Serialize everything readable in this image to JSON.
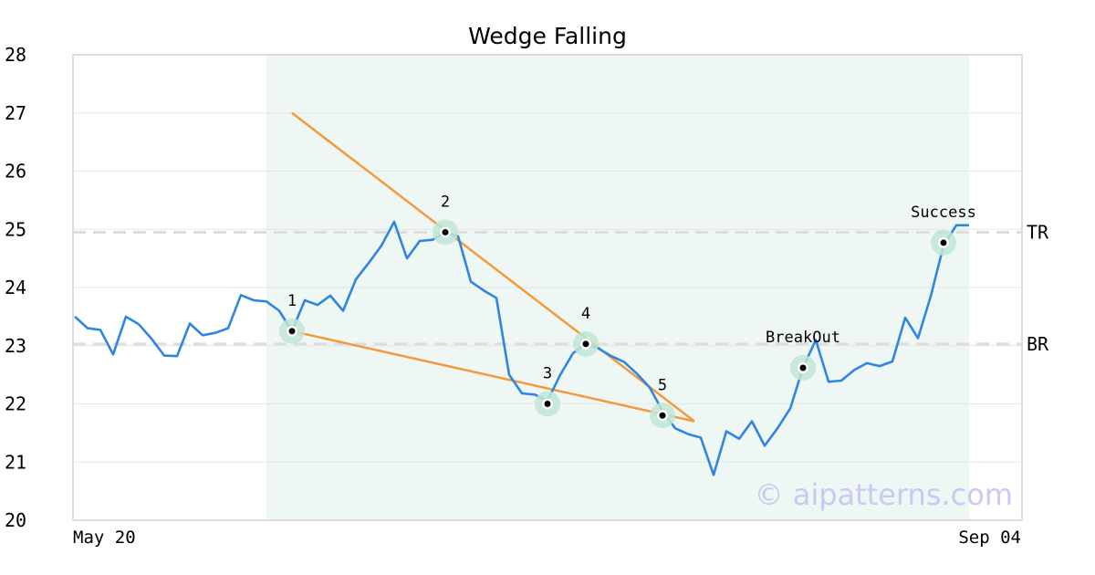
{
  "chart_data": {
    "type": "line",
    "title": "Wedge Falling",
    "xlabel": "",
    "ylabel": "",
    "ylim": [
      20,
      28
    ],
    "yticks": [
      "20",
      "21",
      "22",
      "23",
      "24",
      "25",
      "26",
      "27",
      "28"
    ],
    "x_tick_labels": [
      "May 20",
      "Sep 04"
    ],
    "grid": true,
    "watermark": "© aipatterns.com",
    "pattern_region": {
      "start_index": 15,
      "end_index": 70
    },
    "series": [
      {
        "color": "#2f86e0",
        "values": [
          23.5,
          23.3,
          23.27,
          22.85,
          23.5,
          23.37,
          23.12,
          22.83,
          22.82,
          23.38,
          23.18,
          23.22,
          23.3,
          23.87,
          23.78,
          23.76,
          23.6,
          23.25,
          23.78,
          23.7,
          23.86,
          23.6,
          24.14,
          24.42,
          24.72,
          25.13,
          24.5,
          24.8,
          24.82,
          24.95,
          24.88,
          24.1,
          23.95,
          23.82,
          22.5,
          22.18,
          22.16,
          22.05,
          22.5,
          22.87,
          23.03,
          22.95,
          22.82,
          22.72,
          22.52,
          22.28,
          21.88,
          21.58,
          21.48,
          21.42,
          20.78,
          21.53,
          21.4,
          21.7,
          21.28,
          21.58,
          21.92,
          22.62,
          23.1,
          22.38,
          22.4,
          22.58,
          22.7,
          22.65,
          22.73,
          23.48,
          23.13,
          23.85,
          24.72,
          25.07,
          25.07
        ]
      }
    ],
    "levels": [
      {
        "label": "TR",
        "value": 24.95
      },
      {
        "label": "BR",
        "value": 23.03
      }
    ],
    "trendlines": [
      {
        "color": "#f5993d",
        "from": {
          "index": 17,
          "value": 27.0
        },
        "to": {
          "index": 48.5,
          "value": 21.7
        }
      },
      {
        "color": "#f5993d",
        "from": {
          "index": 17,
          "value": 23.25
        },
        "to": {
          "index": 48.5,
          "value": 21.7
        }
      }
    ],
    "points": [
      {
        "label": "1",
        "index": 17,
        "value": 23.25
      },
      {
        "label": "2",
        "index": 29,
        "value": 24.95
      },
      {
        "label": "3",
        "index": 37,
        "value": 22.0
      },
      {
        "label": "4",
        "index": 40,
        "value": 23.03
      },
      {
        "label": "5",
        "index": 46,
        "value": 21.8
      },
      {
        "label": "BreakOut",
        "index": 57,
        "value": 22.62
      },
      {
        "label": "Success",
        "index": 68,
        "value": 24.77
      }
    ]
  }
}
